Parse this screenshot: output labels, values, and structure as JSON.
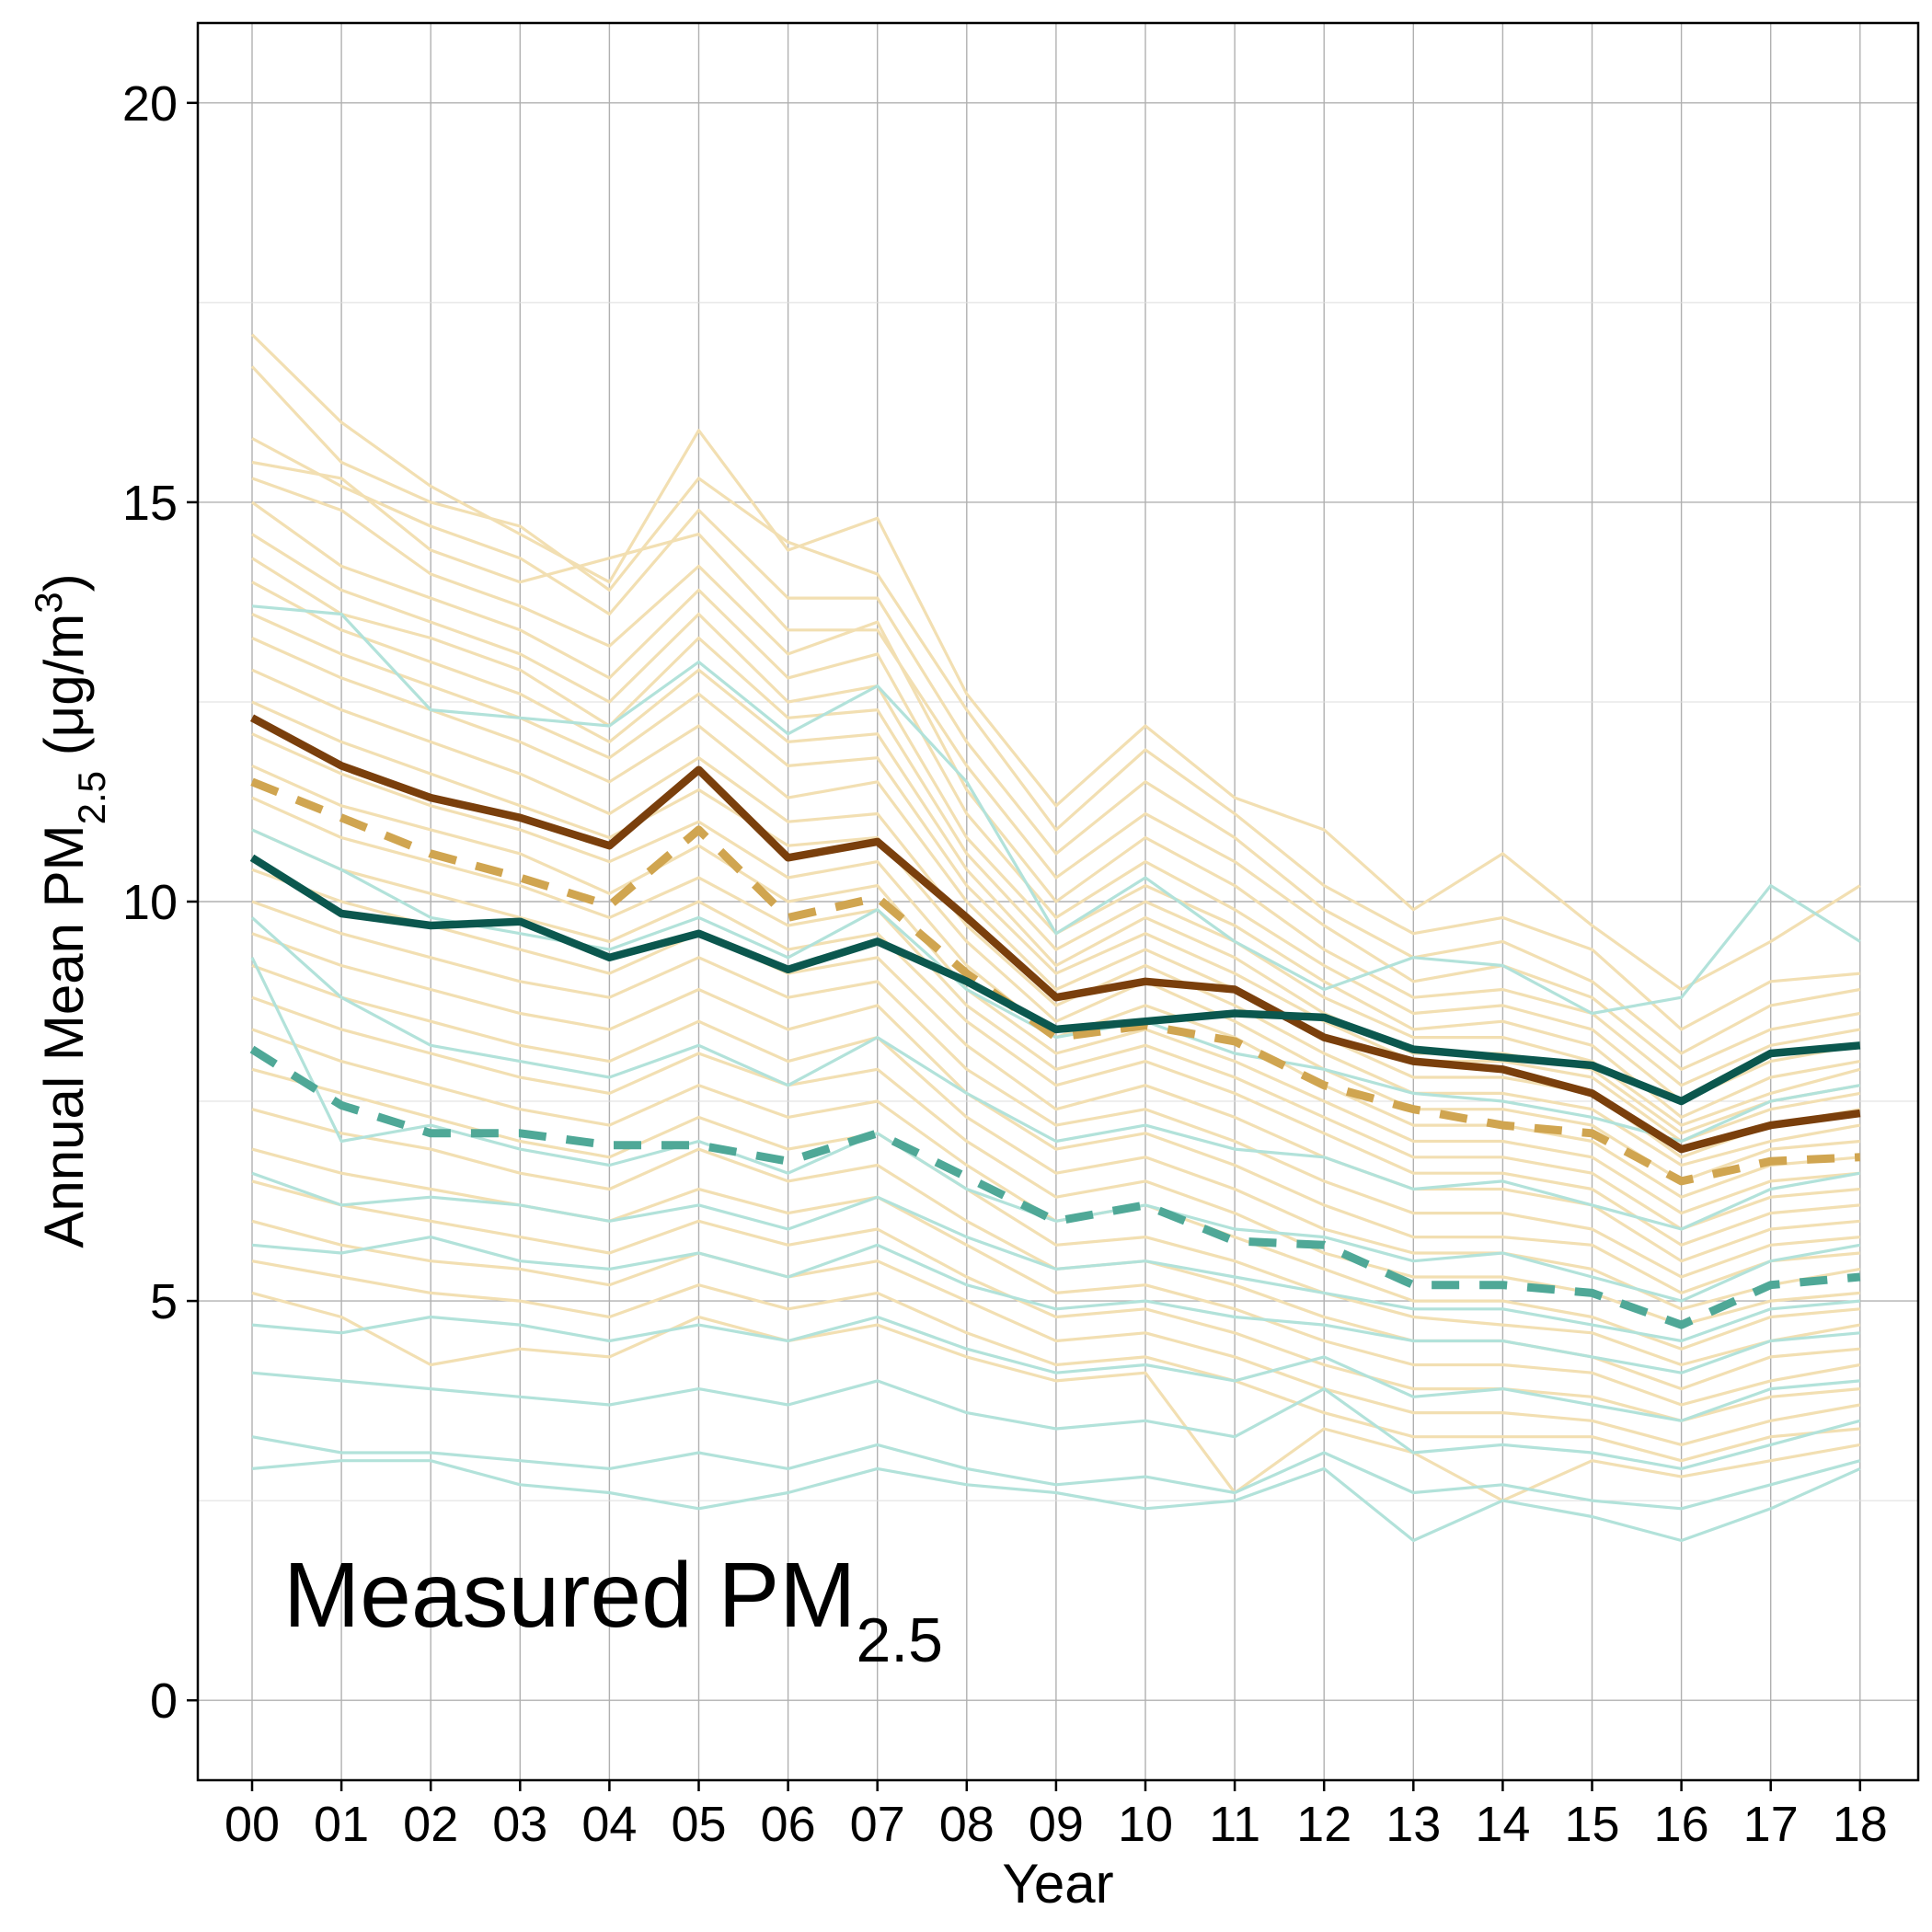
{
  "chart_data": {
    "type": "line",
    "annotation": {
      "main": "Measured PM",
      "sub": "2.5"
    },
    "xlabel": "Year",
    "ylabel": {
      "main": "Annual Mean PM",
      "sub": "2.5",
      "unit_open": " (μg/m",
      "sup": "3",
      "unit_close": ")"
    },
    "x": [
      "00",
      "01",
      "02",
      "03",
      "04",
      "05",
      "06",
      "07",
      "08",
      "09",
      "10",
      "11",
      "12",
      "13",
      "14",
      "15",
      "16",
      "17",
      "18"
    ],
    "ylim": [
      -1,
      21
    ],
    "yticks": [
      0,
      5,
      10,
      15,
      20
    ],
    "grid": true,
    "colors": {
      "tan_light": "#f2dfb2",
      "teal_light": "#b2e2da",
      "brown": "#7a3f0c",
      "tan_dashed": "#d0a550",
      "dark_teal": "#0b574e",
      "teal_dashed": "#4fa897"
    },
    "series": [
      {
        "group": "tan",
        "style": "mean",
        "values": [
          12.3,
          11.7,
          11.3,
          11.05,
          10.7,
          11.65,
          10.55,
          10.75,
          9.8,
          8.8,
          9.0,
          8.9,
          8.3,
          8.0,
          7.9,
          7.6,
          6.9,
          7.2,
          7.35
        ]
      },
      {
        "group": "tan",
        "style": "median",
        "values": [
          11.5,
          11.05,
          10.6,
          10.3,
          9.95,
          10.9,
          9.8,
          10.05,
          9.1,
          8.3,
          8.45,
          8.25,
          7.7,
          7.4,
          7.2,
          7.1,
          6.5,
          6.75,
          6.8
        ]
      },
      {
        "group": "teal",
        "style": "mean",
        "values": [
          10.55,
          9.85,
          9.7,
          9.75,
          9.3,
          9.6,
          9.15,
          9.5,
          9.0,
          8.4,
          8.5,
          8.6,
          8.55,
          8.15,
          8.05,
          7.95,
          7.5,
          8.1,
          8.2
        ]
      },
      {
        "group": "teal",
        "style": "median",
        "values": [
          8.15,
          7.45,
          7.1,
          7.1,
          6.95,
          6.95,
          6.75,
          7.1,
          6.55,
          6.0,
          6.2,
          5.75,
          5.7,
          5.2,
          5.2,
          5.1,
          4.7,
          5.2,
          5.3
        ]
      }
    ],
    "background_series": {
      "tan": [
        [
          17.1,
          16.0,
          15.2,
          14.6,
          14.0,
          15.9,
          14.4,
          14.8,
          12.6,
          11.2,
          12.2,
          11.3,
          10.9,
          9.9,
          10.6,
          9.7,
          8.9,
          9.5,
          10.2
        ],
        [
          16.7,
          15.5,
          15.0,
          14.7,
          13.9,
          15.3,
          14.5,
          14.1,
          12.4,
          10.9,
          11.9,
          11.1,
          10.2,
          9.6,
          9.8,
          9.4,
          8.4,
          9.0,
          9.1
        ],
        [
          15.8,
          15.2,
          14.7,
          14.3,
          13.6,
          14.9,
          13.8,
          13.8,
          12.0,
          10.6,
          11.5,
          10.8,
          9.9,
          9.3,
          9.5,
          9.0,
          8.1,
          8.7,
          8.9
        ],
        [
          15.5,
          15.3,
          14.4,
          14.0,
          14.3,
          14.6,
          13.4,
          13.4,
          11.7,
          10.3,
          11.1,
          10.5,
          9.7,
          9.0,
          9.2,
          8.8,
          7.9,
          8.4,
          8.6
        ],
        [
          15.3,
          14.9,
          14.1,
          13.7,
          13.2,
          14.2,
          13.1,
          13.5,
          11.4,
          10.0,
          10.8,
          10.2,
          9.4,
          8.8,
          8.9,
          8.6,
          7.7,
          8.2,
          8.4
        ],
        [
          15.0,
          14.2,
          13.8,
          13.4,
          12.8,
          13.9,
          12.8,
          13.1,
          11.1,
          9.8,
          10.5,
          9.9,
          9.2,
          8.6,
          8.7,
          8.4,
          7.5,
          8.0,
          8.2
        ],
        [
          14.6,
          13.9,
          13.5,
          13.1,
          12.5,
          13.6,
          12.5,
          12.7,
          10.8,
          9.6,
          10.2,
          9.7,
          9.0,
          8.4,
          8.5,
          8.2,
          7.3,
          7.8,
          8.0
        ],
        [
          14.3,
          13.6,
          13.3,
          12.9,
          12.2,
          13.3,
          12.3,
          12.4,
          10.6,
          9.4,
          10.0,
          9.5,
          8.8,
          8.3,
          8.3,
          8.0,
          7.2,
          7.6,
          7.9
        ],
        [
          14.0,
          13.4,
          13.0,
          12.6,
          12.0,
          12.9,
          12.0,
          12.1,
          10.4,
          9.2,
          9.8,
          9.3,
          8.6,
          8.1,
          8.1,
          7.9,
          7.1,
          7.5,
          7.7
        ],
        [
          13.6,
          13.1,
          12.7,
          12.3,
          11.8,
          12.6,
          11.7,
          11.8,
          10.2,
          9.1,
          9.6,
          9.1,
          8.5,
          8.0,
          8.0,
          7.8,
          7.0,
          7.4,
          7.6
        ],
        [
          13.3,
          12.8,
          12.4,
          12.0,
          11.5,
          12.2,
          11.3,
          11.5,
          10.0,
          8.9,
          9.4,
          8.9,
          8.3,
          7.8,
          7.8,
          7.6,
          6.8,
          7.2,
          7.4
        ],
        [
          12.9,
          12.4,
          12.0,
          11.6,
          11.1,
          11.8,
          11.0,
          11.1,
          9.7,
          8.7,
          9.2,
          8.7,
          8.1,
          7.6,
          7.6,
          7.4,
          6.7,
          7.0,
          7.2
        ],
        [
          12.5,
          12.0,
          11.6,
          11.2,
          10.8,
          11.4,
          10.7,
          10.8,
          9.5,
          8.5,
          9.0,
          8.5,
          7.9,
          7.4,
          7.4,
          7.2,
          6.5,
          6.9,
          7.0
        ],
        [
          12.1,
          11.6,
          11.2,
          10.9,
          10.5,
          11.0,
          10.3,
          10.5,
          9.2,
          8.3,
          8.7,
          8.3,
          7.7,
          7.2,
          7.2,
          7.0,
          6.3,
          6.7,
          6.8
        ],
        [
          11.7,
          11.2,
          10.9,
          10.6,
          10.1,
          10.7,
          10.0,
          10.2,
          8.9,
          8.1,
          8.4,
          8.0,
          7.5,
          7.0,
          7.0,
          6.8,
          6.1,
          6.5,
          6.6
        ],
        [
          11.3,
          10.8,
          10.5,
          10.2,
          9.8,
          10.3,
          9.7,
          9.9,
          8.7,
          7.9,
          8.2,
          7.8,
          7.3,
          6.8,
          6.8,
          6.6,
          5.9,
          6.3,
          6.4
        ],
        [
          10.9,
          10.4,
          10.1,
          9.8,
          9.5,
          10.0,
          9.4,
          9.6,
          8.5,
          7.7,
          8.0,
          7.6,
          7.1,
          6.6,
          6.6,
          6.4,
          5.7,
          6.1,
          6.2
        ],
        [
          10.4,
          10.0,
          9.7,
          9.4,
          9.1,
          9.6,
          9.1,
          9.3,
          8.2,
          7.4,
          7.7,
          7.3,
          6.8,
          6.4,
          6.4,
          6.2,
          5.5,
          5.9,
          6.0
        ],
        [
          10.0,
          9.6,
          9.3,
          9.0,
          8.8,
          9.3,
          8.8,
          9.0,
          7.9,
          7.2,
          7.4,
          7.0,
          6.5,
          6.1,
          6.1,
          5.9,
          5.3,
          5.7,
          5.8
        ],
        [
          9.6,
          9.2,
          8.9,
          8.6,
          8.4,
          8.9,
          8.4,
          8.7,
          7.6,
          6.9,
          7.1,
          6.7,
          6.2,
          5.8,
          5.8,
          5.7,
          5.1,
          5.5,
          5.6
        ],
        [
          9.2,
          8.8,
          8.5,
          8.2,
          8.0,
          8.5,
          8.0,
          8.3,
          7.3,
          6.6,
          6.8,
          6.4,
          5.9,
          5.6,
          5.6,
          5.4,
          4.9,
          5.2,
          5.4
        ],
        [
          8.8,
          8.4,
          8.1,
          7.8,
          7.6,
          8.1,
          7.7,
          7.9,
          7.0,
          6.3,
          6.5,
          6.1,
          5.6,
          5.3,
          5.3,
          5.1,
          4.7,
          5.0,
          5.1
        ],
        [
          8.4,
          8.0,
          7.7,
          7.4,
          7.2,
          7.7,
          7.3,
          7.5,
          6.7,
          6.0,
          6.2,
          5.8,
          5.4,
          5.0,
          5.0,
          4.8,
          4.4,
          4.8,
          4.9
        ],
        [
          7.9,
          7.6,
          7.3,
          7.0,
          6.8,
          7.3,
          6.9,
          7.1,
          6.4,
          5.7,
          5.8,
          5.5,
          5.1,
          4.8,
          4.7,
          4.6,
          4.2,
          4.5,
          4.7
        ],
        [
          7.4,
          7.1,
          6.9,
          6.6,
          6.4,
          6.9,
          6.5,
          6.7,
          6.0,
          5.4,
          5.5,
          5.2,
          4.8,
          4.5,
          4.5,
          4.3,
          3.9,
          4.3,
          4.4
        ],
        [
          6.9,
          6.6,
          6.4,
          6.2,
          6.0,
          6.4,
          6.1,
          6.3,
          5.7,
          5.1,
          5.2,
          4.9,
          4.5,
          4.2,
          4.2,
          4.1,
          3.7,
          4.0,
          4.2
        ],
        [
          6.5,
          6.2,
          6.0,
          5.8,
          5.6,
          6.0,
          5.7,
          5.9,
          5.3,
          4.8,
          4.9,
          4.6,
          4.2,
          3.9,
          3.9,
          3.8,
          3.5,
          3.8,
          3.9
        ],
        [
          6.0,
          5.7,
          5.5,
          5.4,
          5.2,
          5.6,
          5.3,
          5.5,
          5.0,
          4.5,
          4.6,
          4.3,
          3.9,
          3.6,
          3.6,
          3.5,
          3.2,
          3.5,
          3.7
        ],
        [
          5.5,
          5.3,
          5.1,
          5.0,
          4.8,
          5.2,
          4.9,
          5.1,
          4.6,
          4.2,
          4.3,
          4.0,
          3.6,
          3.3,
          3.3,
          3.3,
          3.0,
          3.3,
          3.4
        ],
        [
          5.1,
          4.8,
          4.2,
          4.4,
          4.3,
          4.8,
          4.5,
          4.7,
          4.3,
          4.0,
          4.1,
          2.6,
          3.4,
          3.1,
          2.5,
          3.0,
          2.8,
          3.0,
          3.2
        ]
      ],
      "teal": [
        [
          13.7,
          13.6,
          12.4,
          12.3,
          12.2,
          13.0,
          12.1,
          12.7,
          11.5,
          9.6,
          10.3,
          9.5,
          8.9,
          9.3,
          9.2,
          8.6,
          8.8,
          10.2,
          9.5
        ],
        [
          10.9,
          10.4,
          9.8,
          9.6,
          9.4,
          9.8,
          9.3,
          9.9,
          8.9,
          8.3,
          8.5,
          8.1,
          7.9,
          7.6,
          7.5,
          7.3,
          7.0,
          7.5,
          7.7
        ],
        [
          9.8,
          8.8,
          8.2,
          8.0,
          7.8,
          8.2,
          7.7,
          8.3,
          7.6,
          7.0,
          7.2,
          6.9,
          6.8,
          6.4,
          6.5,
          6.2,
          5.9,
          6.4,
          6.6
        ],
        [
          9.3,
          7.0,
          7.2,
          6.9,
          6.7,
          7.0,
          6.6,
          7.1,
          6.4,
          6.0,
          6.2,
          5.9,
          5.8,
          5.5,
          5.6,
          5.3,
          5.0,
          5.5,
          5.7
        ],
        [
          6.6,
          6.2,
          6.3,
          6.2,
          6.0,
          6.2,
          5.9,
          6.3,
          5.8,
          5.4,
          5.5,
          5.3,
          5.1,
          4.9,
          4.9,
          4.7,
          4.5,
          4.9,
          5.0
        ],
        [
          5.7,
          5.6,
          5.8,
          5.5,
          5.4,
          5.6,
          5.3,
          5.7,
          5.2,
          4.9,
          5.0,
          4.8,
          4.7,
          4.5,
          4.5,
          4.3,
          4.1,
          4.5,
          4.6
        ],
        [
          4.7,
          4.6,
          4.8,
          4.7,
          4.5,
          4.7,
          4.5,
          4.8,
          4.4,
          4.1,
          4.2,
          4.0,
          4.3,
          3.8,
          3.9,
          3.7,
          3.5,
          3.9,
          4.0
        ],
        [
          4.1,
          4.0,
          3.9,
          3.8,
          3.7,
          3.9,
          3.7,
          4.0,
          3.6,
          3.4,
          3.5,
          3.3,
          3.9,
          3.1,
          3.2,
          3.1,
          2.9,
          3.2,
          3.5
        ],
        [
          3.3,
          3.1,
          3.1,
          3.0,
          2.9,
          3.1,
          2.9,
          3.2,
          2.9,
          2.7,
          2.8,
          2.6,
          3.1,
          2.6,
          2.7,
          2.5,
          2.4,
          2.7,
          3.0
        ],
        [
          2.9,
          3.0,
          3.0,
          2.7,
          2.6,
          2.4,
          2.6,
          2.9,
          2.7,
          2.6,
          2.4,
          2.5,
          2.9,
          2.0,
          2.5,
          2.3,
          2.0,
          2.4,
          2.9
        ]
      ]
    }
  }
}
